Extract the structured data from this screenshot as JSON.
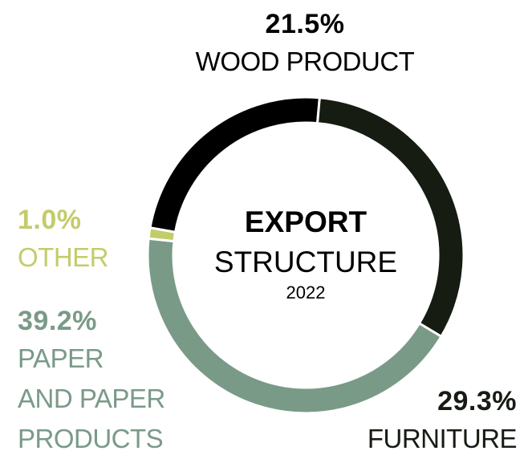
{
  "chart_data": {
    "type": "donut",
    "title": "EXPORT",
    "subtitle": "STRUCTURE",
    "year": "2022",
    "categories": [
      "WOOD PRODUCT",
      "FURNITURE",
      "PAPER AND PAPER PRODUCTS",
      "OTHER"
    ],
    "values": [
      21.5,
      29.3,
      39.2,
      1.0
    ],
    "value_labels": [
      "21.5%",
      "29.3%",
      "39.2%",
      "1.0%"
    ],
    "colors": [
      "#000000",
      "#161c12",
      "#7a9a88",
      "#c3cc6a"
    ]
  }
}
